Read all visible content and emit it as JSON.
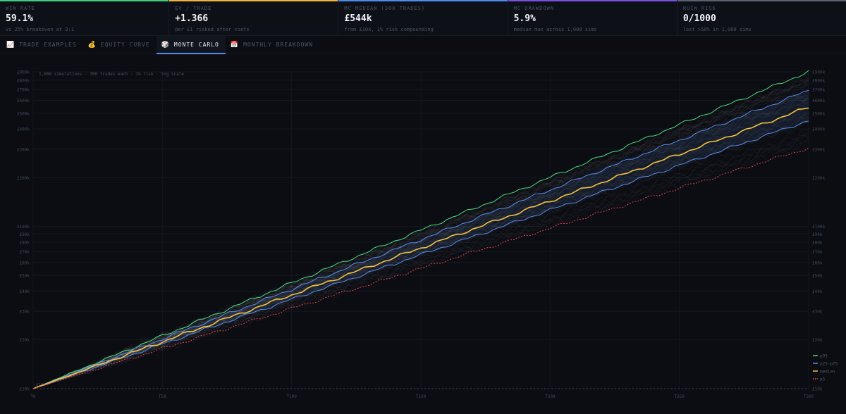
{
  "stats": [
    {
      "label": "WIN RATE",
      "value": "59.1%",
      "sub": "vs 25% breakeven at 3:1",
      "color": "#3ecf7a"
    },
    {
      "label": "EV / TRADE",
      "value": "+1.366",
      "sub": "per £1 risked after costs",
      "color": "#f0b43c"
    },
    {
      "label": "MC MEDIAN (300 TRADES)",
      "value": "£544k",
      "sub": "from £10k, 1% risk compounding",
      "color": "#4a8cf0"
    },
    {
      "label": "MC DRAWDOWN",
      "value": "5.9%",
      "sub": "median max across 1,000 sims",
      "color": "#7a4ee0"
    },
    {
      "label": "RUIN RISK",
      "value": "0/1000",
      "sub": "lost >50% in 1,000 sims",
      "color": "#5a6170"
    }
  ],
  "tabs": [
    {
      "label": "TRADE EXAMPLES",
      "icon": "📈",
      "icon_name": "chart-up-icon",
      "active": false
    },
    {
      "label": "EQUITY CURVE",
      "icon": "💰",
      "icon_name": "money-bag-icon",
      "active": false
    },
    {
      "label": "MONTE CARLO",
      "icon": "🎲",
      "icon_name": "dice-icon",
      "active": true
    },
    {
      "label": "MONTHLY BREAKDOWN",
      "icon": "📅",
      "icon_name": "calendar-icon",
      "active": false
    }
  ],
  "chart_data": {
    "type": "line",
    "annotation": "1,000 simulations · 300 trades each · 1% risk · log scale",
    "log_scale": true,
    "grid": true,
    "ylim": [
      10000,
      900000
    ],
    "xlim": [
      0,
      300
    ],
    "x_ticks": [
      {
        "v": 0,
        "label": "T0"
      },
      {
        "v": 50,
        "label": "T50"
      },
      {
        "v": 100,
        "label": "T100"
      },
      {
        "v": 150,
        "label": "T150"
      },
      {
        "v": 200,
        "label": "T200"
      },
      {
        "v": 250,
        "label": "T250"
      },
      {
        "v": 300,
        "label": "T300"
      }
    ],
    "y_ticks": [
      {
        "v": 10000,
        "label": "£10k"
      },
      {
        "v": 20000,
        "label": "£20k"
      },
      {
        "v": 30000,
        "label": "£30k"
      },
      {
        "v": 40000,
        "label": "£40k"
      },
      {
        "v": 50000,
        "label": "£50k"
      },
      {
        "v": 60000,
        "label": "£60k"
      },
      {
        "v": 70000,
        "label": "£70k"
      },
      {
        "v": 80000,
        "label": "£80k"
      },
      {
        "v": 90000,
        "label": "£90k"
      },
      {
        "v": 100000,
        "label": "£100k"
      },
      {
        "v": 200000,
        "label": "£200k"
      },
      {
        "v": 300000,
        "label": "£300k"
      },
      {
        "v": 400000,
        "label": "£400k"
      },
      {
        "v": 500000,
        "label": "£500k"
      },
      {
        "v": 600000,
        "label": "£600k"
      },
      {
        "v": 700000,
        "label": "£700k"
      },
      {
        "v": 800000,
        "label": "£800k"
      },
      {
        "v": 900000,
        "label": "£900k"
      }
    ],
    "start_label": "£10k",
    "start_value": 10000,
    "legend_position": "bottom-right",
    "series": [
      {
        "name": "p95",
        "final": 900000,
        "color": "#4ade80",
        "dashed": false
      },
      {
        "name": "p25–p75",
        "final": [
          450000,
          690000
        ],
        "color": "#5b8def",
        "dashed": false
      },
      {
        "name": "median",
        "final": 544000,
        "color": "#f5c242",
        "dashed": false
      },
      {
        "name": "p5",
        "final": 305000,
        "color": "#e0404a",
        "dashed": true
      }
    ]
  }
}
